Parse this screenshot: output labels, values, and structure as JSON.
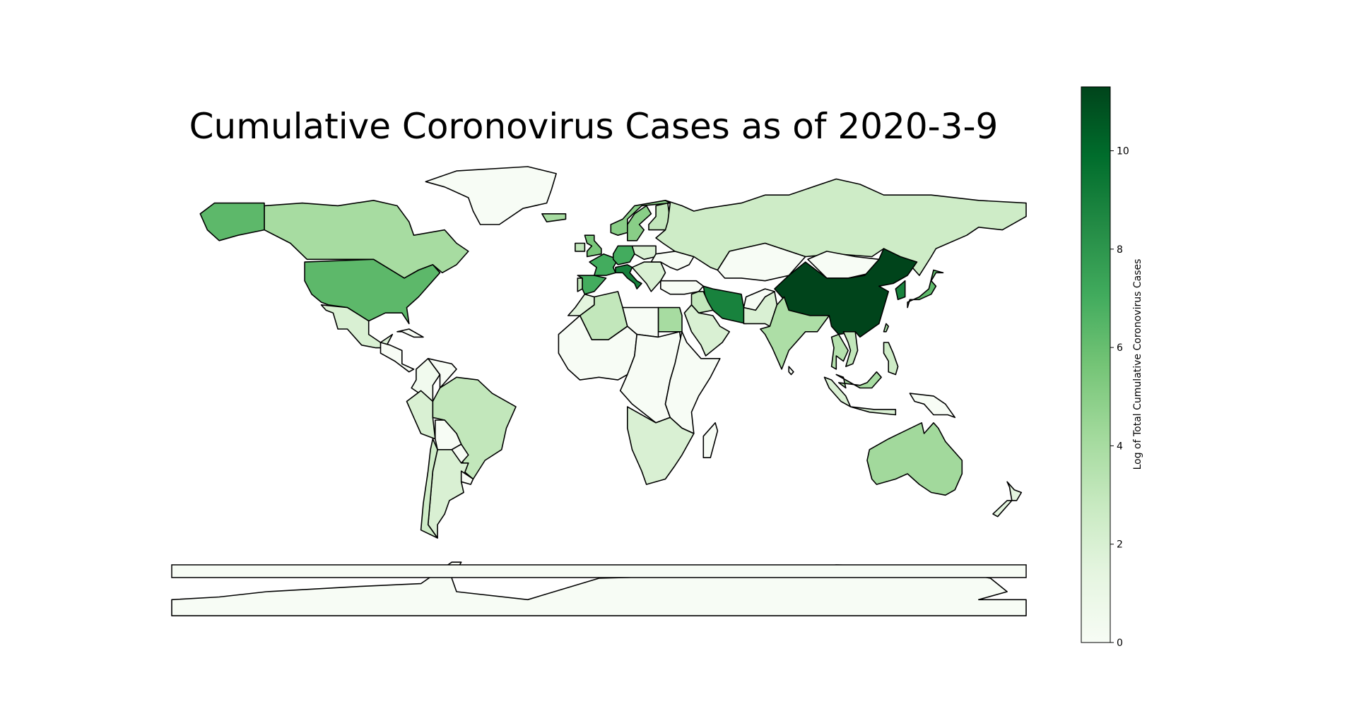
{
  "title": "Cumulative Coronovirus Cases as of 2020-3-9",
  "colorbar": {
    "label": "Log of Total Cumulative Coronovirus Cases",
    "min": 0,
    "max": 11.3,
    "ticks": [
      0,
      2,
      4,
      6,
      8,
      10
    ],
    "colormap": "Greens",
    "stops": [
      "#f7fcf5",
      "#e5f5e0",
      "#c7e9c0",
      "#a1d99b",
      "#74c476",
      "#41ab5d",
      "#238b45",
      "#006d2c",
      "#00441b"
    ]
  },
  "chart_data": {
    "type": "choropleth",
    "projection": "equirectangular",
    "value": "log of total cumulative coronavirus cases (approx.)",
    "regions": [
      {
        "name": "Greenland",
        "value": 0
      },
      {
        "name": "Canada",
        "value": 4.0
      },
      {
        "name": "Alaska",
        "value": 6.3
      },
      {
        "name": "United States",
        "value": 6.3
      },
      {
        "name": "Mexico",
        "value": 2.0
      },
      {
        "name": "Central America",
        "value": 0
      },
      {
        "name": "Cuba",
        "value": 0
      },
      {
        "name": "Colombia",
        "value": 0.5
      },
      {
        "name": "Venezuela",
        "value": 0
      },
      {
        "name": "Peru",
        "value": 2.0
      },
      {
        "name": "Brazil",
        "value": 3.0
      },
      {
        "name": "Bolivia",
        "value": 0
      },
      {
        "name": "Paraguay",
        "value": 0
      },
      {
        "name": "Argentina",
        "value": 2.0
      },
      {
        "name": "Chile",
        "value": 2.5
      },
      {
        "name": "Uruguay",
        "value": 0
      },
      {
        "name": "Antarctica",
        "value": 0
      },
      {
        "name": "Iceland",
        "value": 4.0
      },
      {
        "name": "Norway",
        "value": 5.0
      },
      {
        "name": "Sweden",
        "value": 5.0
      },
      {
        "name": "Finland",
        "value": 3.0
      },
      {
        "name": "United Kingdom",
        "value": 5.5
      },
      {
        "name": "Ireland",
        "value": 3.0
      },
      {
        "name": "Spain",
        "value": 7.0
      },
      {
        "name": "Portugal",
        "value": 3.0
      },
      {
        "name": "France",
        "value": 7.0
      },
      {
        "name": "Germany",
        "value": 7.0
      },
      {
        "name": "Italy",
        "value": 9.0
      },
      {
        "name": "Poland",
        "value": 2.0
      },
      {
        "name": "Balkans",
        "value": 2.0
      },
      {
        "name": "Ukraine",
        "value": 0
      },
      {
        "name": "Turkey",
        "value": 0
      },
      {
        "name": "Russia",
        "value": 2.5
      },
      {
        "name": "Kazakhstan",
        "value": 0
      },
      {
        "name": "Mongolia",
        "value": 0
      },
      {
        "name": "China",
        "value": 11.3
      },
      {
        "name": "Iran",
        "value": 8.9
      },
      {
        "name": "Iraq",
        "value": 3.0
      },
      {
        "name": "Saudi Arabia",
        "value": 2.0
      },
      {
        "name": "Egypt",
        "value": 4.0
      },
      {
        "name": "Algeria",
        "value": 3.0
      },
      {
        "name": "Morocco",
        "value": 1.5
      },
      {
        "name": "Libya",
        "value": 0
      },
      {
        "name": "West Africa",
        "value": 0
      },
      {
        "name": "Central Africa",
        "value": 0
      },
      {
        "name": "East Africa",
        "value": 0
      },
      {
        "name": "South Africa",
        "value": 2.0
      },
      {
        "name": "Madagascar",
        "value": 0
      },
      {
        "name": "Afghanistan",
        "value": 0
      },
      {
        "name": "Pakistan",
        "value": 2.0
      },
      {
        "name": "India",
        "value": 3.8
      },
      {
        "name": "Sri Lanka",
        "value": 0
      },
      {
        "name": "Thailand",
        "value": 3.5
      },
      {
        "name": "Vietnam",
        "value": 3.0
      },
      {
        "name": "Malaysia",
        "value": 4.0
      },
      {
        "name": "Indonesia",
        "value": 2.0
      },
      {
        "name": "Philippines",
        "value": 2.5
      },
      {
        "name": "Korea",
        "value": 8.9
      },
      {
        "name": "Japan",
        "value": 6.2
      },
      {
        "name": "Taiwan",
        "value": 4.0
      },
      {
        "name": "Papua New Guinea",
        "value": 0
      },
      {
        "name": "Australia",
        "value": 4.2
      },
      {
        "name": "New Zealand",
        "value": 1.5
      }
    ]
  }
}
